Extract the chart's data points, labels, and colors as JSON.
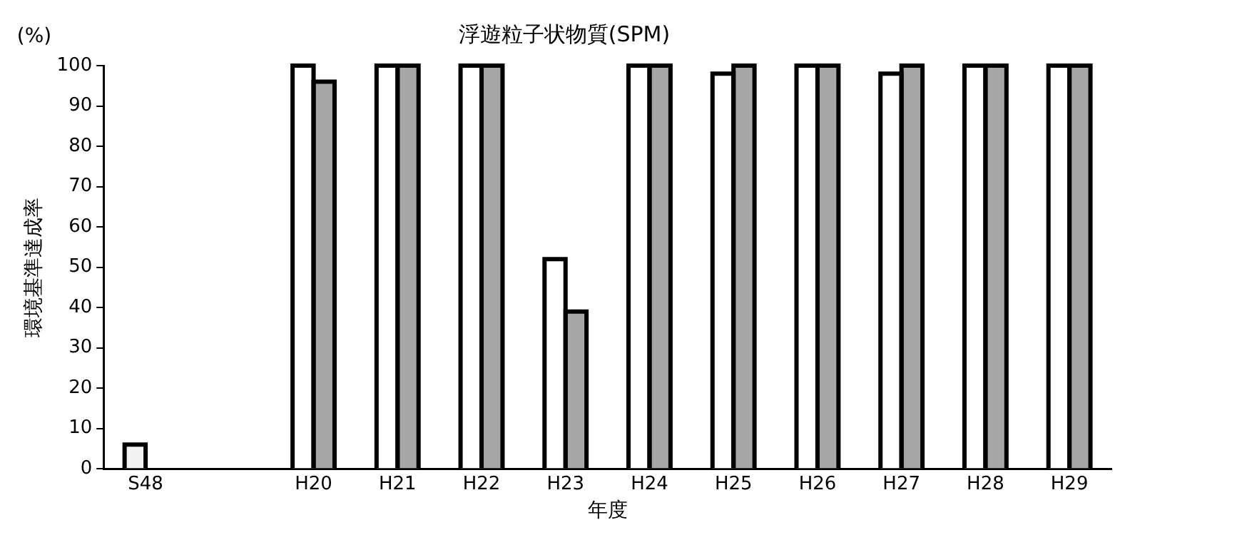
{
  "chart_data": {
    "type": "bar",
    "title": "浮遊粒子状物質(SPM)",
    "xlabel": "年度",
    "ylabel": "環境基準達成率",
    "annotations": [
      "(%)"
    ],
    "categories": [
      "S48",
      null,
      "H20",
      "H21",
      "H22",
      "H23",
      "H24",
      "H25",
      "H26",
      "H27",
      "H28",
      "H29"
    ],
    "series": [
      {
        "colors": [
          "#f2f2f2",
          "#ffffff",
          "#ffffff",
          "#ffffff",
          "#ffffff",
          "#ffffff",
          "#ffffff",
          "#ffffff",
          "#ffffff",
          "#ffffff",
          "#ffffff",
          "#ffffff"
        ],
        "values": [
          6,
          null,
          100,
          100,
          100,
          52,
          100,
          98,
          100,
          98,
          100,
          100
        ]
      },
      {
        "color": "#a6a6a6",
        "values": [
          null,
          null,
          96,
          100,
          100,
          39,
          100,
          100,
          100,
          100,
          100,
          100
        ]
      }
    ],
    "ylim": [
      0,
      100
    ],
    "yticks": [
      0,
      10,
      20,
      30,
      40,
      50,
      60,
      70,
      80,
      90,
      100
    ],
    "grid": false,
    "legend": false
  }
}
